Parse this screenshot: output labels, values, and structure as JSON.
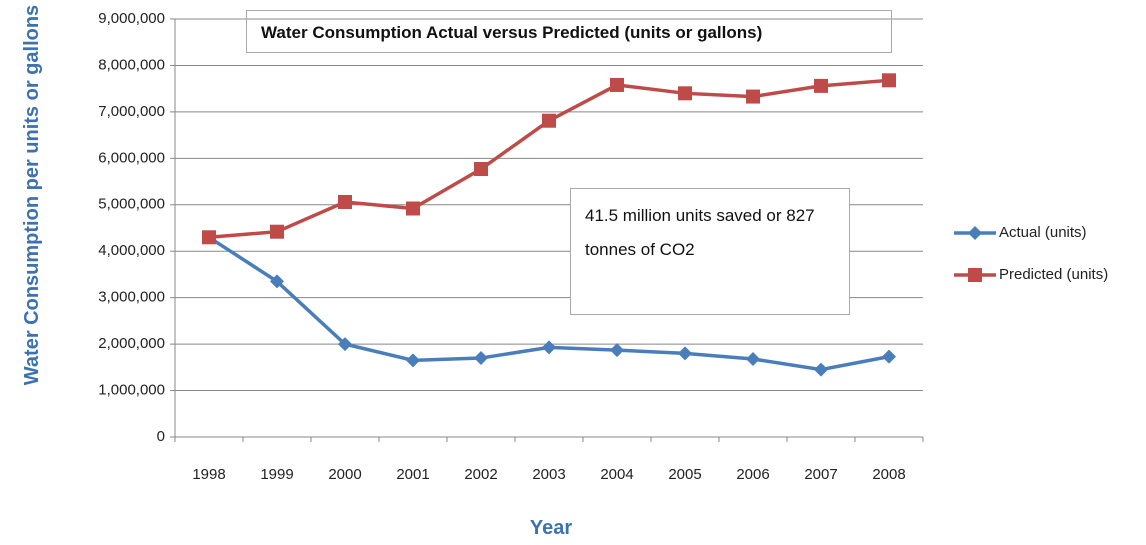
{
  "chart_data": {
    "type": "line",
    "title": "Water Consumption Actual versus Predicted (units  or gallons)",
    "y_label": "Water Consumption per units or gallons",
    "x_label": "Year",
    "annotation": "41.5 million units saved or 827 tonnes of CO2",
    "categories": [
      "1998",
      "1999",
      "2000",
      "2001",
      "2002",
      "2003",
      "2004",
      "2005",
      "2006",
      "2007",
      "2008"
    ],
    "series": [
      {
        "name": "Actual (units)",
        "color": "#4a7ebb",
        "marker": "diamond",
        "values": [
          4300000,
          3350000,
          2000000,
          1650000,
          1700000,
          1930000,
          1870000,
          1800000,
          1680000,
          1450000,
          1730000
        ]
      },
      {
        "name": "Predicted (units)",
        "color": "#be4b48",
        "marker": "square",
        "values": [
          4300000,
          4420000,
          5060000,
          4920000,
          5770000,
          6810000,
          7580000,
          7400000,
          7330000,
          7560000,
          7680000
        ]
      }
    ],
    "ylim": [
      0,
      9000000
    ],
    "yticks": [
      0,
      {
        "value": 1000000,
        "label": "1,000,000"
      },
      {
        "value": 2000000,
        "label": "2,000,000"
      },
      {
        "value": 3000000,
        "label": "3,000,000"
      },
      {
        "value": 4000000,
        "label": "4,000,000"
      },
      {
        "value": 5000000,
        "label": "5,000,000"
      },
      {
        "value": 6000000,
        "label": "6,000,000"
      },
      {
        "value": 7000000,
        "label": "7,000,000"
      },
      {
        "value": 8000000,
        "label": "8,000,000"
      },
      {
        "value": 9000000,
        "label": "9,000,000"
      }
    ],
    "grid": true,
    "legend": "right"
  }
}
